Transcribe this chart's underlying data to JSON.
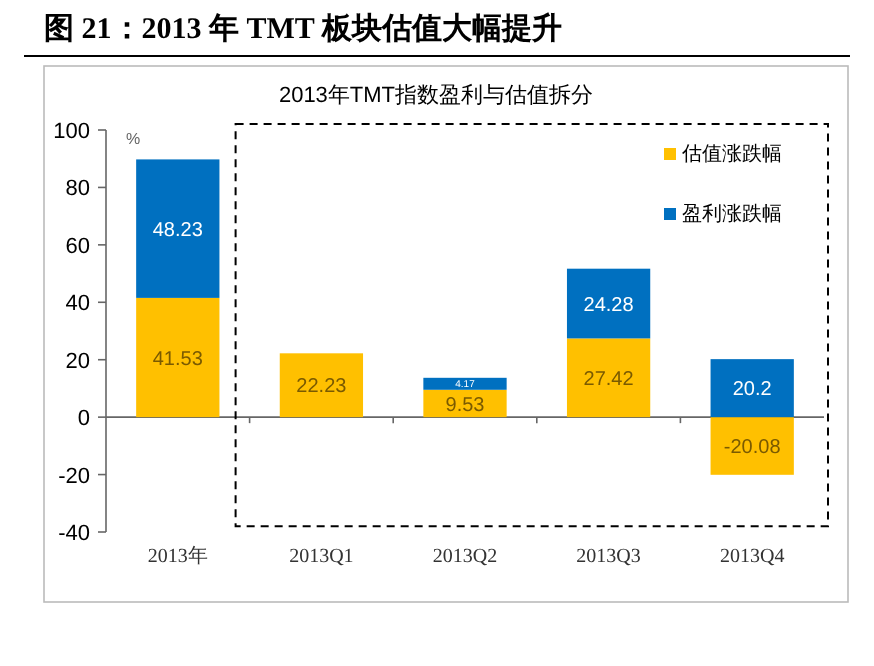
{
  "chart_data": {
    "type": "bar",
    "title": "图 21：2013 年 TMT 板块估值大幅提升",
    "subtitle": "2013年TMT指数盈利与估值拆分",
    "ylabel": "%",
    "categories": [
      "2013年",
      "2013Q1",
      "2013Q2",
      "2013Q3",
      "2013Q4"
    ],
    "stacked": true,
    "series": [
      {
        "name": "估值涨跌幅",
        "color": "#ffc000",
        "values": [
          41.53,
          22.23,
          9.53,
          27.42,
          -20.08
        ]
      },
      {
        "name": "盈利涨跌幅",
        "color": "#0070c0",
        "values": [
          48.23,
          null,
          4.17,
          24.28,
          20.2
        ]
      }
    ],
    "ylim": [
      -40,
      100
    ],
    "yticks": [
      -40,
      -20,
      0,
      20,
      40,
      60,
      80,
      100
    ],
    "data_labels": true,
    "legend": "top right"
  }
}
